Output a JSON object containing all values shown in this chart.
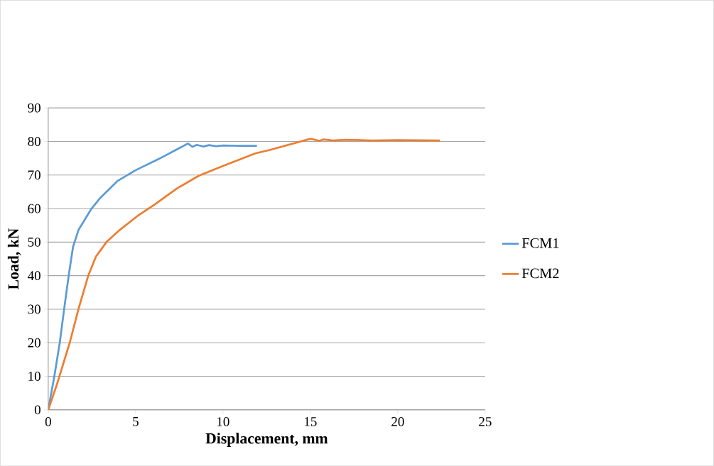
{
  "chart_data": {
    "type": "line",
    "xlabel": "Displacement, mm",
    "ylabel": "Load, kN",
    "xlim": [
      0,
      25
    ],
    "ylim": [
      0,
      90
    ],
    "xticks": [
      0,
      5,
      10,
      15,
      20,
      25
    ],
    "yticks": [
      0,
      10,
      20,
      30,
      40,
      50,
      60,
      70,
      80,
      90
    ],
    "grid": "y",
    "legend": "right",
    "marker": "none",
    "line_style": "solid",
    "series": [
      {
        "name": "FCM1",
        "color": "#5b9bd5",
        "x": [
          0,
          0.35,
          0.66,
          0.91,
          1.17,
          1.42,
          1.73,
          2.48,
          2.98,
          3.98,
          4.99,
          6.37,
          8.0,
          8.25,
          8.5,
          8.87,
          9.2,
          9.6,
          10.0,
          11.0,
          11.94
        ],
        "values": [
          0,
          10,
          20,
          30,
          40,
          48.6,
          53.6,
          60,
          63.2,
          68.3,
          71.4,
          74.9,
          79.4,
          78.4,
          79.0,
          78.5,
          78.9,
          78.6,
          78.8,
          78.7,
          78.7
        ]
      },
      {
        "name": "FCM2",
        "color": "#ed7d31",
        "x": [
          0,
          0.48,
          1.23,
          1.73,
          2.29,
          2.73,
          3.36,
          4.11,
          5.11,
          6.12,
          6.62,
          7.37,
          8.62,
          10.0,
          11.88,
          12.63,
          15.01,
          15.51,
          15.76,
          16.3,
          17.0,
          18.5,
          20.0,
          22.41
        ],
        "values": [
          0,
          7.3,
          20,
          30,
          40,
          45.7,
          50.2,
          53.7,
          57.8,
          61.3,
          63.2,
          66.0,
          69.8,
          72.7,
          76.5,
          77.4,
          80.8,
          80.2,
          80.6,
          80.3,
          80.5,
          80.3,
          80.4,
          80.3
        ]
      }
    ]
  }
}
